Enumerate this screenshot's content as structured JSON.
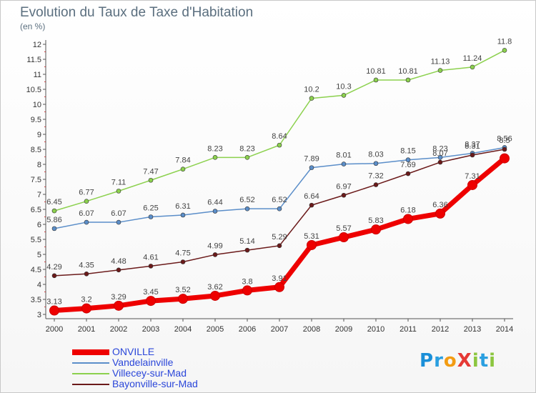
{
  "title": "Evolution du Taux de Taxe d'Habitation",
  "unit": "(en %)",
  "brand": {
    "text": "ProXiti",
    "letters": [
      {
        "ch": "P",
        "color": "#1a8fd8"
      },
      {
        "ch": "r",
        "color": "#2a9fe0"
      },
      {
        "ch": "o",
        "color": "#f39c12"
      },
      {
        "ch": "X",
        "color": "#e53935"
      },
      {
        "ch": "i",
        "color": "#8cc63f"
      },
      {
        "ch": "t",
        "color": "#2a9fe0"
      },
      {
        "ch": "i",
        "color": "#8cc63f"
      }
    ]
  },
  "chart_data": {
    "type": "line",
    "title": "Evolution du Taux de Taxe d'Habitation",
    "ylabel": "(en %)",
    "xlabel": "",
    "x": [
      "2000",
      "2001",
      "2002",
      "2003",
      "2004",
      "2005",
      "2006",
      "2007",
      "2008",
      "2009",
      "2010",
      "2011",
      "2012",
      "2013",
      "2014"
    ],
    "ylim": [
      3,
      12
    ],
    "yticks": [
      "3",
      "3.5",
      "4",
      "4.5",
      "5",
      "5.5",
      "6",
      "6.5",
      "7",
      "7.5",
      "8",
      "8.5",
      "9",
      "9.5",
      "10",
      "10.5",
      "11",
      "11.5",
      "12"
    ],
    "grid": false,
    "legend_position": "bottom-left",
    "series": [
      {
        "name": "ONVILLE",
        "color": "#ee0000",
        "emphasis": true,
        "values": [
          3.13,
          3.2,
          3.29,
          3.45,
          3.52,
          3.62,
          3.8,
          3.91,
          5.31,
          5.57,
          5.83,
          6.18,
          6.36,
          7.31,
          8.2
        ],
        "labels": [
          "3.13",
          "3.2",
          "3.29",
          "3.45",
          "3.52",
          "3.62",
          "3.8",
          "3.91",
          "5.31",
          "5.57",
          "5.83",
          "6.18",
          "6.36",
          "7.31",
          ""
        ]
      },
      {
        "name": "Vandelainville",
        "color": "#5b8ec9",
        "values": [
          5.86,
          6.07,
          6.07,
          6.25,
          6.31,
          6.44,
          6.52,
          6.52,
          7.89,
          8.01,
          8.03,
          8.15,
          8.23,
          8.37,
          8.56
        ],
        "labels": [
          "5.86",
          "6.07",
          "6.07",
          "6.25",
          "6.31",
          "6.44",
          "6.52",
          "6.52",
          "7.89",
          "8.01",
          "8.03",
          "8.15",
          "8.23",
          "8.37",
          "8.56"
        ]
      },
      {
        "name": "Villecey-sur-Mad",
        "color": "#8cd14e",
        "values": [
          6.45,
          6.77,
          7.11,
          7.47,
          7.84,
          8.23,
          8.23,
          8.64,
          10.2,
          10.3,
          10.81,
          10.81,
          11.13,
          11.24,
          11.8
        ],
        "labels": [
          "6.45",
          "6.77",
          "7.11",
          "7.47",
          "7.84",
          "8.23",
          "8.23",
          "8.64",
          "10.2",
          "10.3",
          "10.81",
          "10.81",
          "11.13",
          "11.24",
          "11.8"
        ]
      },
      {
        "name": "Bayonville-sur-Mad",
        "color": "#6b1a1a",
        "values": [
          4.29,
          4.35,
          4.48,
          4.61,
          4.75,
          4.99,
          5.14,
          5.29,
          6.64,
          6.97,
          7.32,
          7.69,
          8.07,
          8.31,
          8.5
        ],
        "labels": [
          "4.29",
          "4.35",
          "4.48",
          "4.61",
          "4.75",
          "4.99",
          "5.14",
          "5.29",
          "6.64",
          "6.97",
          "7.32",
          "7.69",
          "8.07",
          "8.31",
          "8.5"
        ]
      }
    ]
  }
}
